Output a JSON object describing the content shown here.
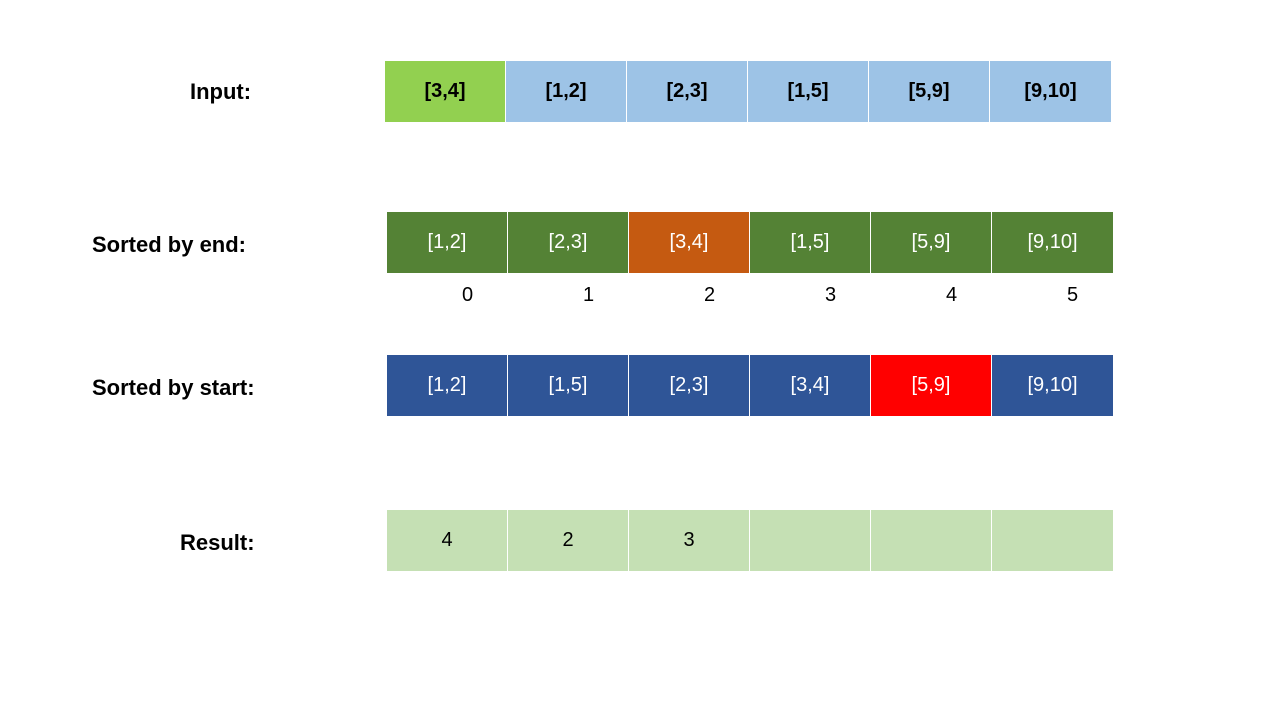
{
  "colors": {
    "input_default": "#9dc3e6",
    "input_highlight": "#92d050",
    "end_default": "#548235",
    "end_highlight": "#c55a11",
    "start_default": "#2f5597",
    "start_highlight": "#ff0000",
    "result_default": "#c5e0b4"
  },
  "rows": {
    "input": {
      "label": "Input:",
      "cells": [
        {
          "text": "[3,4]",
          "highlight": true
        },
        {
          "text": "[1,2]",
          "highlight": false
        },
        {
          "text": "[2,3]",
          "highlight": false
        },
        {
          "text": "[1,5]",
          "highlight": false
        },
        {
          "text": "[5,9]",
          "highlight": false
        },
        {
          "text": "[9,10]",
          "highlight": false
        }
      ]
    },
    "sorted_end": {
      "label": "Sorted by end:",
      "cells": [
        {
          "text": "[1,2]",
          "highlight": false
        },
        {
          "text": "[2,3]",
          "highlight": false
        },
        {
          "text": "[3,4]",
          "highlight": true
        },
        {
          "text": "[1,5]",
          "highlight": false
        },
        {
          "text": "[5,9]",
          "highlight": false
        },
        {
          "text": "[9,10]",
          "highlight": false
        }
      ]
    },
    "indices": [
      "0",
      "1",
      "2",
      "3",
      "4",
      "5"
    ],
    "sorted_start": {
      "label": "Sorted by start:",
      "cells": [
        {
          "text": "[1,2]",
          "highlight": false
        },
        {
          "text": "[1,5]",
          "highlight": false
        },
        {
          "text": "[2,3]",
          "highlight": false
        },
        {
          "text": "[3,4]",
          "highlight": false
        },
        {
          "text": "[5,9]",
          "highlight": true
        },
        {
          "text": "[9,10]",
          "highlight": false
        }
      ]
    },
    "result": {
      "label": "Result:",
      "cells": [
        {
          "text": "4"
        },
        {
          "text": "2"
        },
        {
          "text": "3"
        },
        {
          "text": ""
        },
        {
          "text": ""
        },
        {
          "text": ""
        }
      ]
    }
  }
}
